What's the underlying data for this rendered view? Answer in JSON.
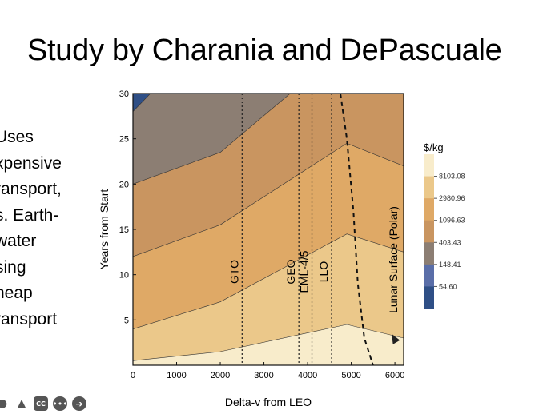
{
  "slide": {
    "title": "Study by Charania and DePascuale",
    "bullets": [
      "Uses",
      "xpensive",
      "ransport,",
      "s. Earth-",
      "water",
      "sing",
      "heap",
      "ransport"
    ]
  },
  "toolbar": {
    "icons": [
      "person-icon",
      "presenter-icon",
      "closed-captions-icon",
      "more-options-icon",
      "next-icon"
    ],
    "cc_label": "CC"
  },
  "chart_data": {
    "type": "contour",
    "xlabel": "Delta-v from LEO",
    "ylabel": "Years from Start",
    "xlim": [
      0,
      6200
    ],
    "ylim": [
      0,
      30
    ],
    "x_ticks": [
      0,
      1000,
      2000,
      3000,
      4000,
      5000,
      6000
    ],
    "y_ticks": [
      5,
      10,
      15,
      20,
      25,
      30
    ],
    "legend": {
      "title": "$/kg",
      "levels": [
        54.6,
        148.41,
        403.43,
        1096.63,
        2980.96,
        8103.08
      ],
      "level_labels": [
        "54.60",
        "148.41",
        "403.43",
        "1096.63",
        "2980.96",
        "8103.08"
      ],
      "colors": [
        "#2f4f86",
        "#5a6ea8",
        "#8c7e73",
        "#c99560",
        "#dfa966",
        "#ebc88a",
        "#f8eccb"
      ]
    },
    "contour_lines": [
      {
        "level": 8103.08,
        "points": [
          [
            0,
            0.5
          ],
          [
            2000,
            1.5
          ],
          [
            4900,
            4.5
          ],
          [
            6200,
            3.0
          ]
        ]
      },
      {
        "level": 2980.96,
        "points": [
          [
            0,
            4
          ],
          [
            2000,
            7
          ],
          [
            4900,
            14.5
          ],
          [
            6200,
            12.5
          ]
        ]
      },
      {
        "level": 1096.63,
        "points": [
          [
            0,
            12
          ],
          [
            2000,
            15.5
          ],
          [
            4900,
            24.5
          ],
          [
            6200,
            22
          ]
        ]
      },
      {
        "level": 403.43,
        "points": [
          [
            0,
            20
          ],
          [
            2000,
            23.5
          ],
          [
            3600,
            30
          ]
        ]
      },
      {
        "level": 148.41,
        "points": [
          [
            0,
            28
          ],
          [
            400,
            30
          ]
        ]
      }
    ],
    "destinations": [
      {
        "name": "GTO",
        "x": 2500
      },
      {
        "name": "GEO",
        "x": 3800
      },
      {
        "name": "EML-4/5",
        "x": 4100
      },
      {
        "name": "LLO",
        "x": 4550
      }
    ],
    "breakeven_curve": {
      "points": [
        [
          4750,
          30
        ],
        [
          4900,
          25
        ],
        [
          5050,
          17
        ],
        [
          5150,
          9
        ],
        [
          5300,
          3
        ],
        [
          5500,
          0
        ]
      ]
    },
    "surface_label": "Lunar Surface (Polar)"
  }
}
